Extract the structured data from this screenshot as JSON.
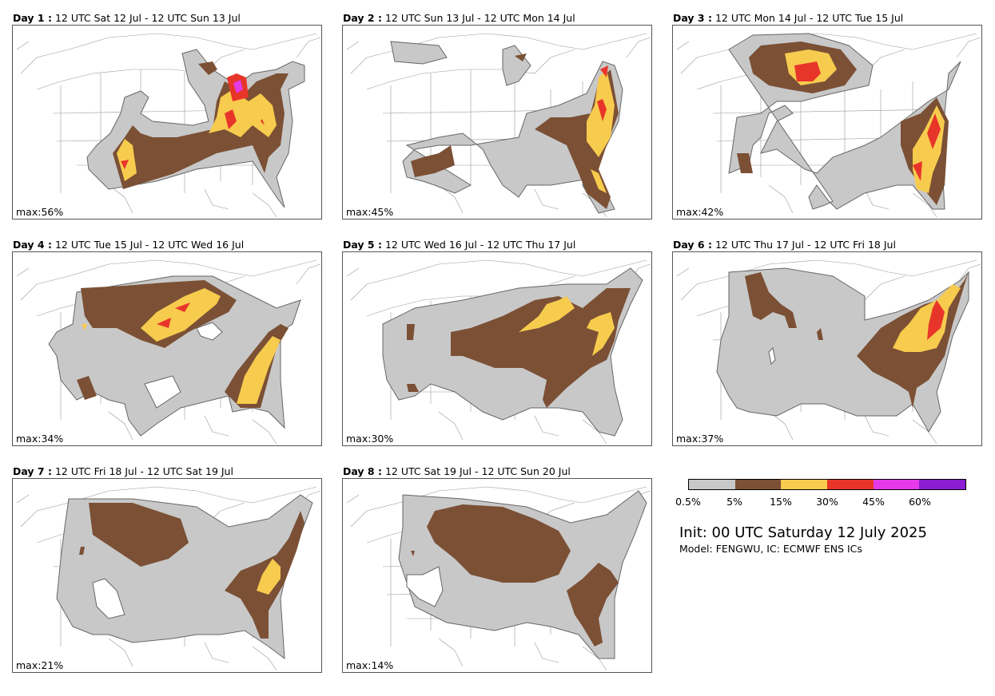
{
  "panels": [
    {
      "day": "Day 1 :",
      "period": "12 UTC Sat 12 Jul - 12 UTC Sun 13 Jul",
      "max": "max:56%"
    },
    {
      "day": "Day 2 :",
      "period": "12 UTC Sun 13 Jul - 12 UTC Mon 14 Jul",
      "max": "max:45%"
    },
    {
      "day": "Day 3 :",
      "period": "12 UTC Mon 14 Jul - 12 UTC Tue 15 Jul",
      "max": "max:42%"
    },
    {
      "day": "Day 4 :",
      "period": "12 UTC Tue 15 Jul - 12 UTC Wed 16 Jul",
      "max": "max:34%"
    },
    {
      "day": "Day 5 :",
      "period": "12 UTC Wed 16 Jul - 12 UTC Thu 17 Jul",
      "max": "max:30%"
    },
    {
      "day": "Day 6 :",
      "period": "12 UTC Thu 17 Jul - 12 UTC Fri 18 Jul",
      "max": "max:37%"
    },
    {
      "day": "Day 7 :",
      "period": "12 UTC Fri 18 Jul - 12 UTC Sat 19 Jul",
      "max": "max:21%"
    },
    {
      "day": "Day 8 :",
      "period": "12 UTC Sat 19 Jul - 12 UTC Sun 20 Jul",
      "max": "max:14%"
    }
  ],
  "colorbar": {
    "colors": [
      "#c8c8c8",
      "#7b5035",
      "#f7cb4d",
      "#e8352a",
      "#e43ae8",
      "#8a1ed0"
    ],
    "ticks": [
      "0.5%",
      "5%",
      "15%",
      "30%",
      "45%",
      "60%"
    ]
  },
  "init": "Init: 00 UTC Saturday 12 July 2025",
  "model": "Model: FENGWU, IC: ECMWF ENS ICs"
}
